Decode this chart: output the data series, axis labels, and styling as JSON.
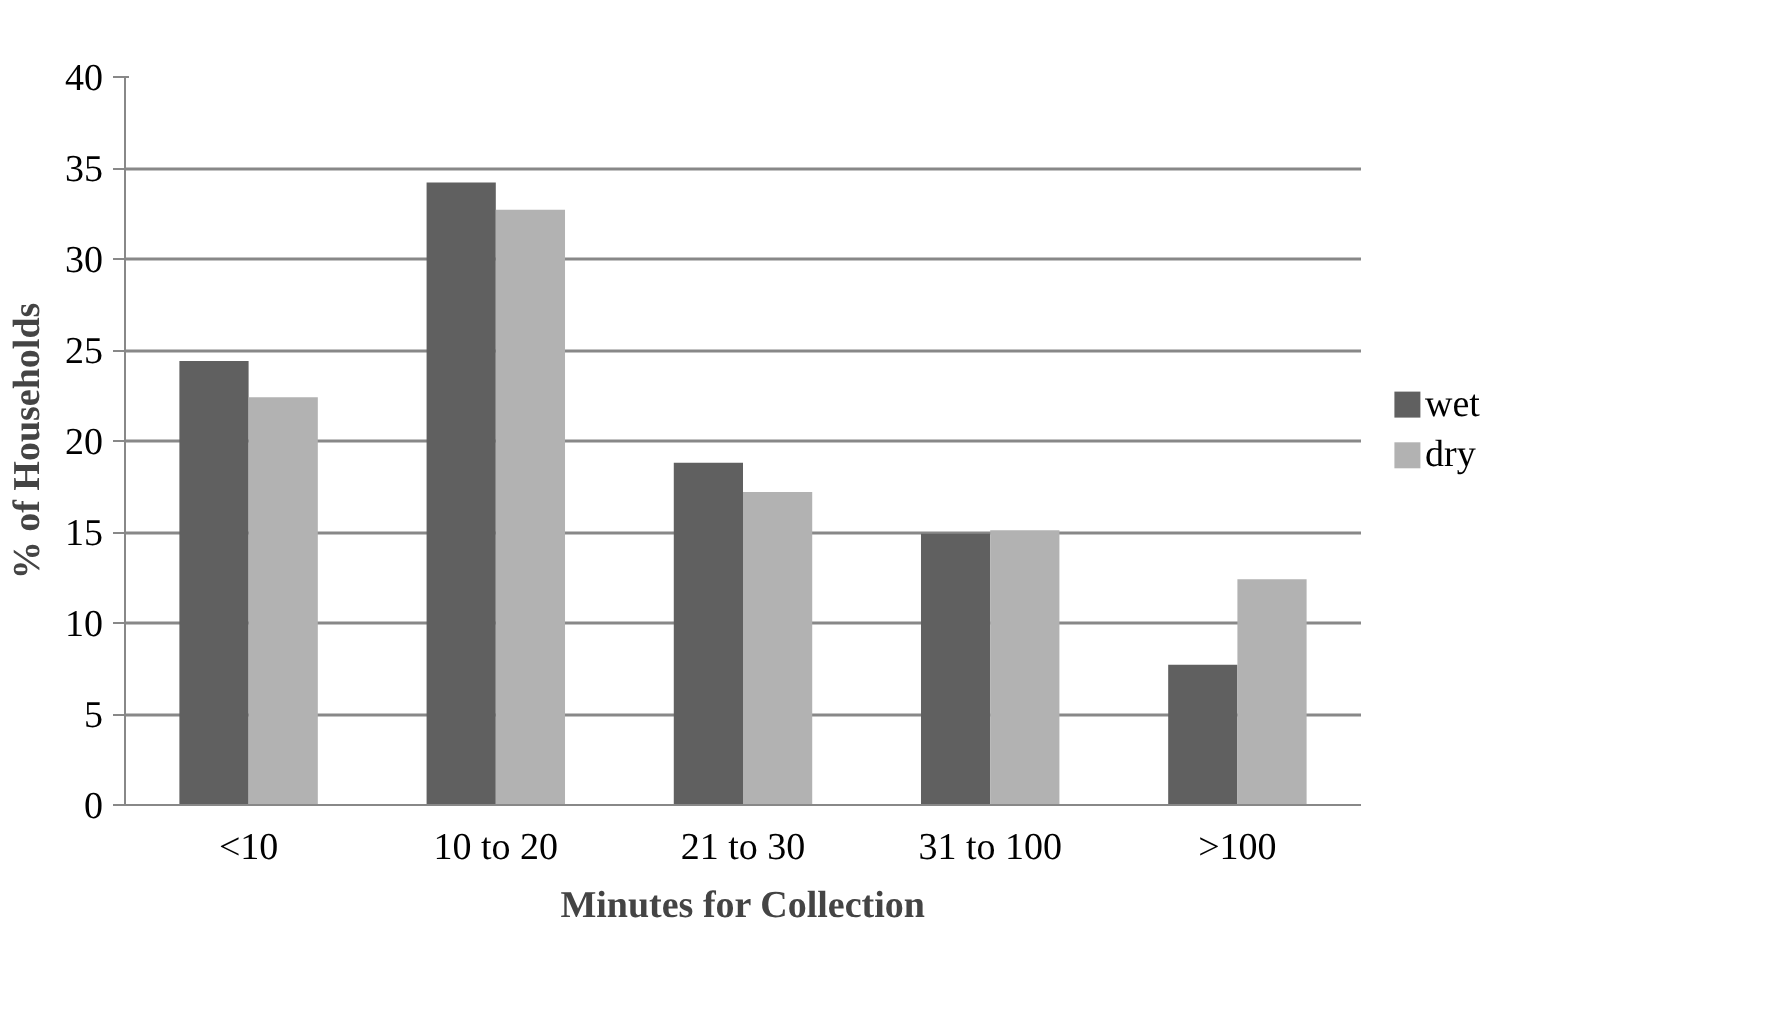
{
  "chart_data": {
    "type": "bar",
    "xlabel": "Minutes for Collection",
    "ylabel": "% of Households",
    "categories": [
      "<10",
      "10 to 20",
      "21 to 30",
      "31 to 100",
      ">100"
    ],
    "series": [
      {
        "name": "wet",
        "color": "#606060",
        "values": [
          24.4,
          34.2,
          18.8,
          14.9,
          7.7
        ]
      },
      {
        "name": "dry",
        "color": "#b2b2b2",
        "values": [
          22.4,
          32.7,
          17.2,
          15.1,
          12.4
        ]
      }
    ],
    "ylim": [
      0,
      40
    ],
    "yticks": [
      0,
      5,
      10,
      15,
      20,
      25,
      30,
      35,
      40
    ],
    "grid": "y",
    "legend": "right"
  }
}
